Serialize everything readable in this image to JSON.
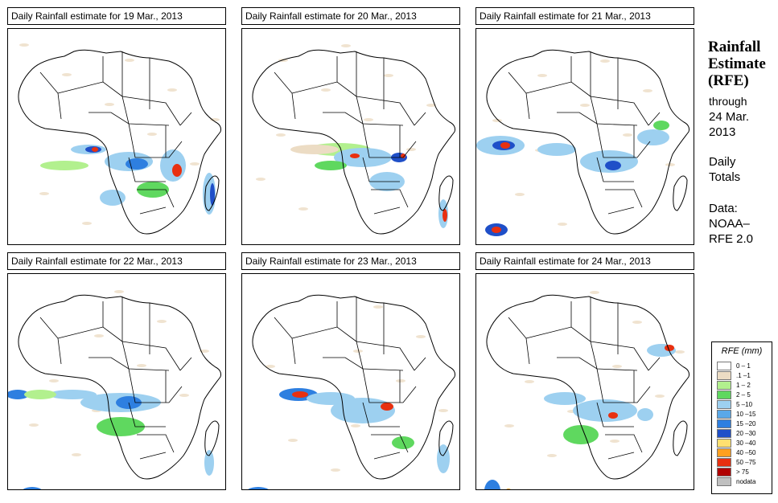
{
  "panels": [
    {
      "title": "Daily Rainfall estimate for  19 Mar., 2013"
    },
    {
      "title": "Daily Rainfall estimate for  20 Mar., 2013"
    },
    {
      "title": "Daily Rainfall estimate for  21 Mar., 2013"
    },
    {
      "title": "Daily Rainfall estimate for  22 Mar., 2013"
    },
    {
      "title": "Daily Rainfall estimate for  23 Mar., 2013"
    },
    {
      "title": "Daily Rainfall estimate for  24 Mar., 2013"
    }
  ],
  "side": {
    "title_line1": "Rainfall",
    "title_line2": "Estimate",
    "title_line3": "(RFE)",
    "through": "through",
    "date_line1": "24 Mar.",
    "date_line2": "2013",
    "daily1": "Daily",
    "daily2": "Totals",
    "data_label": "Data:",
    "source1": "NOAA–",
    "source2": "RFE 2.0"
  },
  "legend": {
    "title": "RFE (mm)",
    "items": [
      {
        "label": "0 – 1",
        "color": "#ffffff"
      },
      {
        "label": ".1 –1",
        "color": "#ecdcc4"
      },
      {
        "label": "1 – 2",
        "color": "#b2f08e"
      },
      {
        "label": "2 – 5",
        "color": "#5fd85f"
      },
      {
        "label": "5 –10",
        "color": "#9dd0f0"
      },
      {
        "label": "10 –15",
        "color": "#5aa8e8"
      },
      {
        "label": "15 –20",
        "color": "#2e7fe0"
      },
      {
        "label": "20 –30",
        "color": "#1f4fc8"
      },
      {
        "label": "30 –40",
        "color": "#ffe070"
      },
      {
        "label": "40 –50",
        "color": "#ffa020"
      },
      {
        "label": "50 –75",
        "color": "#e83010"
      },
      {
        "label": "> 75",
        "color": "#b00000"
      },
      {
        "label": "nodata",
        "color": "#c0c0c0"
      }
    ]
  }
}
